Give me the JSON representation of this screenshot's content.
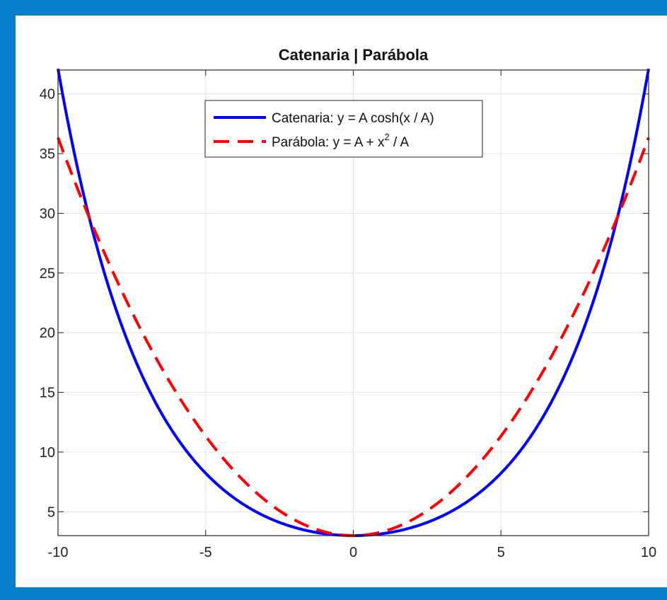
{
  "chart_data": {
    "type": "line",
    "title": "Catenaria | Parábola",
    "xlim": [
      -10,
      10
    ],
    "ylim": [
      3,
      42
    ],
    "xticks": [
      -10,
      -5,
      0,
      5,
      10
    ],
    "yticks": [
      5,
      10,
      15,
      20,
      25,
      30,
      35,
      40
    ],
    "xtick_labels": [
      "-10",
      "-5",
      "0",
      "5",
      "10"
    ],
    "ytick_labels": [
      "5",
      "10",
      "15",
      "20",
      "25",
      "30",
      "35",
      "40"
    ],
    "grid": true,
    "legend_position": "top-center",
    "series": [
      {
        "name": "Catenaria: y = A cosh(x / A)",
        "name_parts": [
          "Catenaria: y = A cosh(x / A)"
        ],
        "color": "#0000ff",
        "style": "solid",
        "A": 3,
        "x": [
          -10,
          -9,
          -8,
          -7,
          -6,
          -5,
          -4,
          -3,
          -2,
          -1,
          0,
          1,
          2,
          3,
          4,
          5,
          6,
          7,
          8,
          9,
          10
        ],
        "y": [
          42.0,
          30.2,
          21.6,
          15.5,
          11.3,
          8.3,
          6.1,
          4.6,
          3.7,
          3.2,
          3.0,
          3.2,
          3.7,
          4.6,
          6.1,
          8.3,
          11.3,
          15.5,
          21.6,
          30.2,
          42.0
        ]
      },
      {
        "name": "Parábola: y = A + x2 / A",
        "name_parts": [
          "Parábola: y = A + x",
          "2",
          " / A"
        ],
        "color": "#ff0000",
        "style": "dashed",
        "A": 3,
        "x": [
          -10,
          -9,
          -8,
          -7,
          -6,
          -5,
          -4,
          -3,
          -2,
          -1,
          0,
          1,
          2,
          3,
          4,
          5,
          6,
          7,
          8,
          9,
          10
        ],
        "y": [
          36.3,
          30.0,
          24.3,
          19.3,
          15.0,
          11.3,
          8.3,
          6.0,
          4.3,
          3.3,
          3.0,
          3.3,
          4.3,
          6.0,
          8.3,
          11.3,
          15.0,
          19.3,
          24.3,
          30.0,
          36.3
        ]
      }
    ]
  }
}
